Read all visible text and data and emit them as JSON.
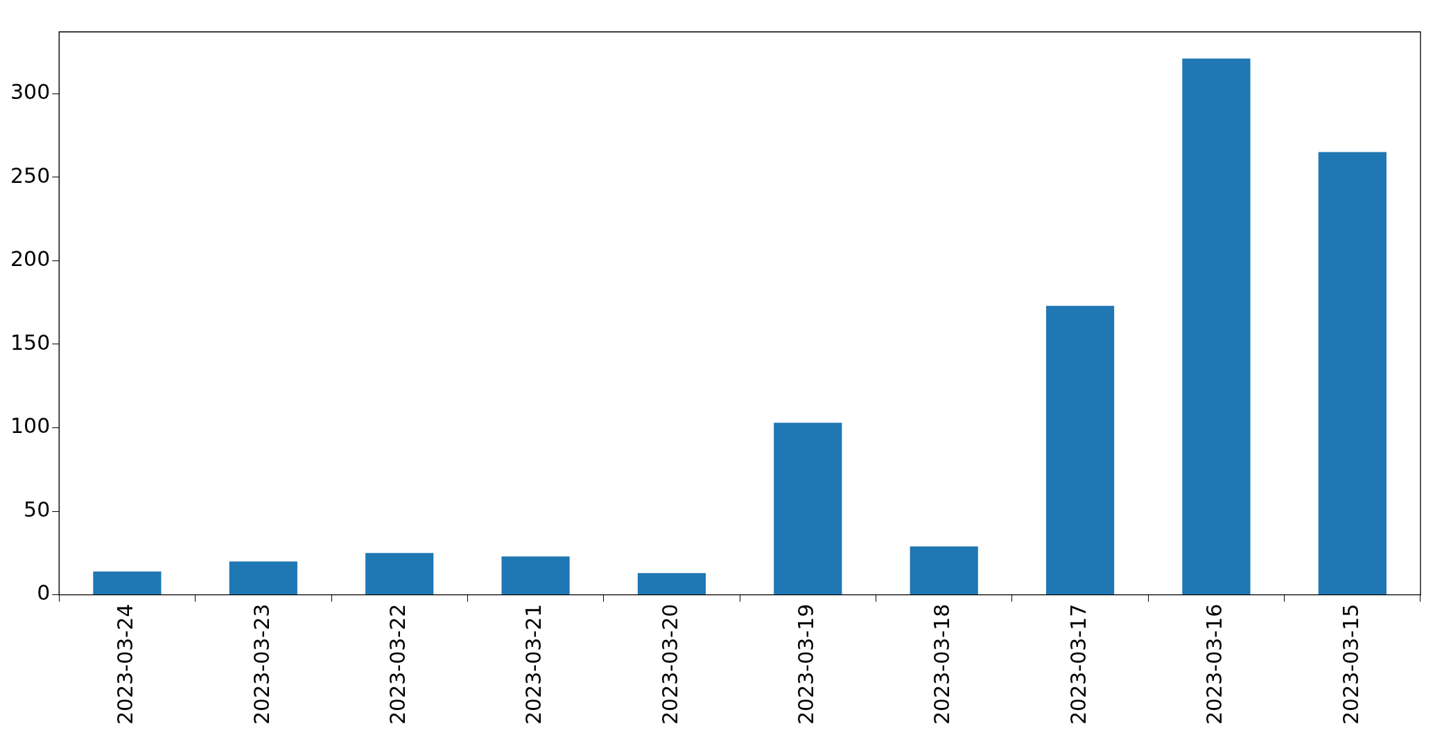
{
  "chart_data": {
    "type": "bar",
    "categories": [
      "2023-03-24",
      "2023-03-23",
      "2023-03-22",
      "2023-03-21",
      "2023-03-20",
      "2023-03-19",
      "2023-03-18",
      "2023-03-17",
      "2023-03-16",
      "2023-03-15"
    ],
    "values": [
      14,
      20,
      25,
      23,
      13,
      103,
      29,
      173,
      321,
      265
    ],
    "color": "#1f77b4",
    "ylim": [
      0,
      337
    ],
    "yticks": [
      0,
      50,
      100,
      150,
      200,
      250,
      300
    ],
    "grid": false,
    "legend": false
  }
}
